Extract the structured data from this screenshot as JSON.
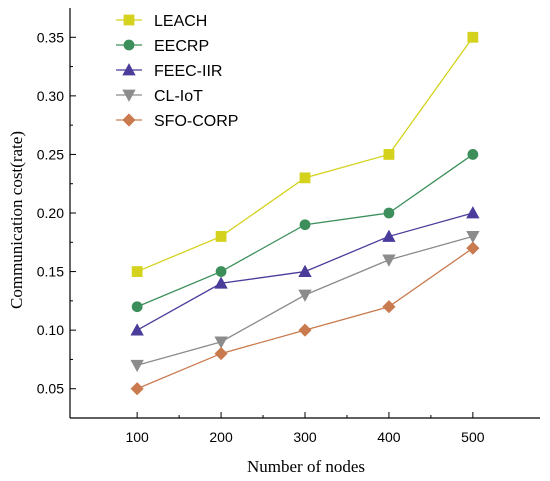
{
  "chart_data": {
    "type": "line",
    "xlabel": "Number of nodes",
    "ylabel": "Communication cost(rate)",
    "x": [
      100,
      200,
      300,
      400,
      500
    ],
    "xlim": [
      20,
      580
    ],
    "ylim": [
      0.025,
      0.375
    ],
    "xticks": [
      100,
      200,
      300,
      400,
      500
    ],
    "yticks": [
      0.05,
      0.1,
      0.15,
      0.2,
      0.25,
      0.3,
      0.35
    ],
    "legend_position": "top-left",
    "grid": false,
    "series": [
      {
        "name": "LEACH",
        "values": [
          0.15,
          0.18,
          0.23,
          0.25,
          0.35
        ],
        "color": "#d4d21c",
        "marker": "square"
      },
      {
        "name": "EECRP",
        "values": [
          0.12,
          0.15,
          0.19,
          0.2,
          0.25
        ],
        "color": "#3c8f5a",
        "marker": "circle"
      },
      {
        "name": "FEEC-IIR",
        "values": [
          0.1,
          0.14,
          0.15,
          0.18,
          0.2
        ],
        "color": "#4a3c9a",
        "marker": "triangle-up"
      },
      {
        "name": "CL-IoT",
        "values": [
          0.07,
          0.09,
          0.13,
          0.16,
          0.18
        ],
        "color": "#8c8c8c",
        "marker": "triangle-down"
      },
      {
        "name": "SFO-CORP",
        "values": [
          0.05,
          0.08,
          0.1,
          0.12,
          0.17
        ],
        "color": "#c97a4e",
        "marker": "diamond"
      }
    ]
  }
}
